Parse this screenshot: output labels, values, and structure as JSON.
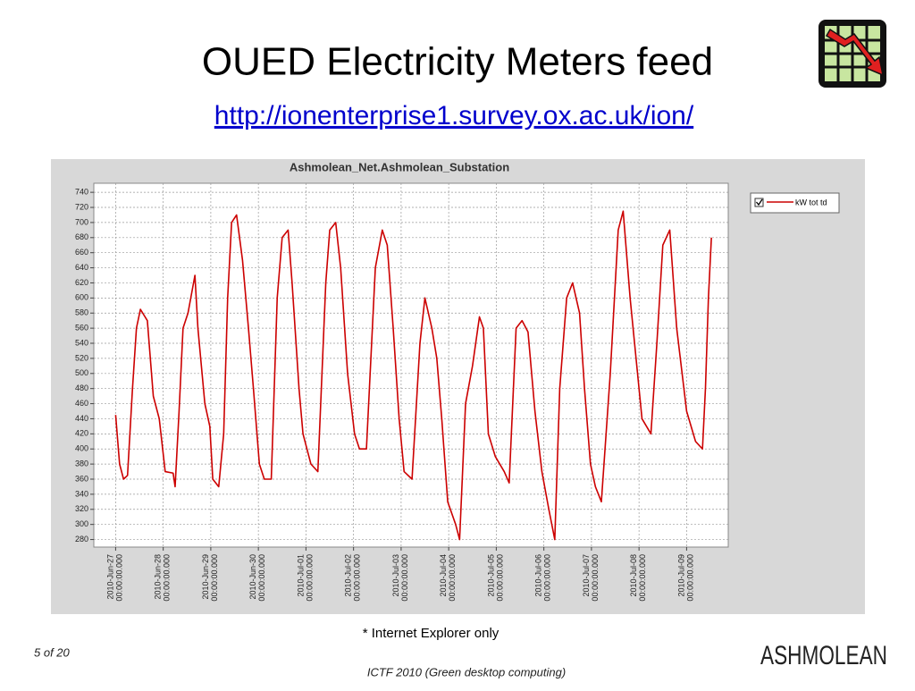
{
  "slide": {
    "title": "OUED Electricity Meters feed",
    "url": "http://ionenterprise1.survey.ox.ac.uk/ion/",
    "note": "* Internet Explorer only",
    "page": "5 of 20",
    "footer": "ICTF 2010 (Green desktop computing)",
    "logo": "ASHMOLEAN"
  },
  "chart_data": {
    "type": "line",
    "title": "Ashmolean_Net.Ashmolean_Substation",
    "x": [
      "2010-06-27T00:00",
      "2010-06-27T02:00",
      "2010-06-27T04:00",
      "2010-06-27T06:00",
      "2010-06-27T08:30",
      "2010-06-27T10:30",
      "2010-06-27T12:30",
      "2010-06-27T16:00",
      "2010-06-27T19:00",
      "2010-06-27T22:00",
      "2010-06-28T01:00",
      "2010-06-28T05:00",
      "2010-06-28T06:00",
      "2010-06-28T08:00",
      "2010-06-28T10:00",
      "2010-06-28T12:30",
      "2010-06-28T16:00",
      "2010-06-28T17:30",
      "2010-06-28T21:00",
      "2010-06-28T23:30",
      "2010-06-29T01:00",
      "2010-06-29T04:00",
      "2010-06-29T06:30",
      "2010-06-29T08:30",
      "2010-06-29T10:30",
      "2010-06-29T13:00",
      "2010-06-29T16:00",
      "2010-06-29T19:00",
      "2010-06-29T21:30",
      "2010-06-30T00:30",
      "2010-06-30T03:00",
      "2010-06-30T06:30",
      "2010-06-30T09:30",
      "2010-06-30T12:00",
      "2010-06-30T15:00",
      "2010-06-30T17:00",
      "2010-06-30T20:30",
      "2010-06-30T22:30",
      "2010-07-01T02:30",
      "2010-07-01T06:00",
      "2010-07-01T10:00",
      "2010-07-01T12:00",
      "2010-07-01T15:00",
      "2010-07-01T17:30",
      "2010-07-01T21:00",
      "2010-07-02T00:30",
      "2010-07-02T03:00",
      "2010-07-02T06:30",
      "2010-07-02T11:00",
      "2010-07-02T14:30",
      "2010-07-02T17:00",
      "2010-07-02T20:00",
      "2010-07-02T23:00",
      "2010-07-03T01:30",
      "2010-07-03T05:30",
      "2010-07-03T09:30",
      "2010-07-03T12:00",
      "2010-07-03T15:30",
      "2010-07-03T18:00",
      "2010-07-03T20:30",
      "2010-07-03T23:30",
      "2010-07-04T03:30",
      "2010-07-04T05:30",
      "2010-07-04T08:30",
      "2010-07-04T12:00",
      "2010-07-04T15:30",
      "2010-07-04T17:30",
      "2010-07-04T20:00",
      "2010-07-04T23:30",
      "2010-07-05T04:00",
      "2010-07-05T06:30",
      "2010-07-05T10:00",
      "2010-07-05T13:00",
      "2010-07-05T16:00",
      "2010-07-05T19:30",
      "2010-07-05T23:00",
      "2010-07-06T02:30",
      "2010-07-06T05:30",
      "2010-07-06T08:00",
      "2010-07-06T11:30",
      "2010-07-06T14:30",
      "2010-07-06T18:00",
      "2010-07-06T20:30",
      "2010-07-06T23:30",
      "2010-07-07T02:00",
      "2010-07-07T05:00",
      "2010-07-07T09:30",
      "2010-07-07T13:30",
      "2010-07-07T16:00",
      "2010-07-07T19:30",
      "2010-07-07T22:30",
      "2010-07-08T01:30",
      "2010-07-08T06:00",
      "2010-07-08T09:00",
      "2010-07-08T12:00",
      "2010-07-08T15:30",
      "2010-07-08T19:00",
      "2010-07-09T00:00",
      "2010-07-09T04:30",
      "2010-07-09T08:00",
      "2010-07-09T09:30",
      "2010-07-09T11:00",
      "2010-07-09T12:30"
    ],
    "series": [
      {
        "name": "kW tot td",
        "color": "#cc0000",
        "values": [
          445,
          380,
          360,
          365,
          480,
          560,
          585,
          570,
          470,
          440,
          370,
          368,
          350,
          450,
          560,
          580,
          630,
          560,
          460,
          430,
          360,
          350,
          420,
          600,
          700,
          710,
          650,
          560,
          480,
          380,
          360,
          360,
          600,
          680,
          690,
          620,
          480,
          420,
          380,
          370,
          620,
          690,
          700,
          640,
          500,
          420,
          400,
          400,
          640,
          690,
          670,
          560,
          440,
          370,
          360,
          540,
          600,
          560,
          520,
          440,
          330,
          300,
          280,
          460,
          510,
          575,
          560,
          420,
          390,
          370,
          355,
          560,
          570,
          555,
          450,
          370,
          320,
          280,
          480,
          600,
          620,
          580,
          480,
          380,
          350,
          330,
          500,
          690,
          715,
          600,
          520,
          440,
          420,
          540,
          670,
          690,
          560,
          450,
          410,
          400,
          480,
          600,
          680
        ]
      }
    ],
    "xlim": [
      "2010-06-26T13:00",
      "2010-07-09T21:00"
    ],
    "xticks": [
      {
        "value": "2010-06-27T00:00",
        "label": "2010-Jun-27 00:00:00.000"
      },
      {
        "value": "2010-06-28T00:00",
        "label": "2010-Jun-28 00:00:00.000"
      },
      {
        "value": "2010-06-29T00:00",
        "label": "2010-Jun-29 00:00:00.000"
      },
      {
        "value": "2010-06-30T00:00",
        "label": "2010-Jun-30 00:00:00.000"
      },
      {
        "value": "2010-07-01T00:00",
        "label": "2010-Jul-01 00:00:00.000"
      },
      {
        "value": "2010-07-02T00:00",
        "label": "2010-Jul-02 00:00:00.000"
      },
      {
        "value": "2010-07-03T00:00",
        "label": "2010-Jul-03 00:00:00.000"
      },
      {
        "value": "2010-07-04T00:00",
        "label": "2010-Jul-04 00:00:00.000"
      },
      {
        "value": "2010-07-05T00:00",
        "label": "2010-Jul-05 00:00:00.000"
      },
      {
        "value": "2010-07-06T00:00",
        "label": "2010-Jul-06 00:00:00.000"
      },
      {
        "value": "2010-07-07T00:00",
        "label": "2010-Jul-07 00:00:00.000"
      },
      {
        "value": "2010-07-08T00:00",
        "label": "2010-Jul-08 00:00:00.000"
      },
      {
        "value": "2010-07-09T00:00",
        "label": "2010-Jul-09 00:00:00.000"
      }
    ],
    "ylim": [
      270,
      752
    ],
    "yticks": [
      280,
      300,
      320,
      340,
      360,
      380,
      400,
      420,
      440,
      460,
      480,
      500,
      520,
      540,
      560,
      580,
      600,
      620,
      640,
      660,
      680,
      700,
      720,
      740
    ],
    "grid": true,
    "legend": "upper right outside"
  }
}
